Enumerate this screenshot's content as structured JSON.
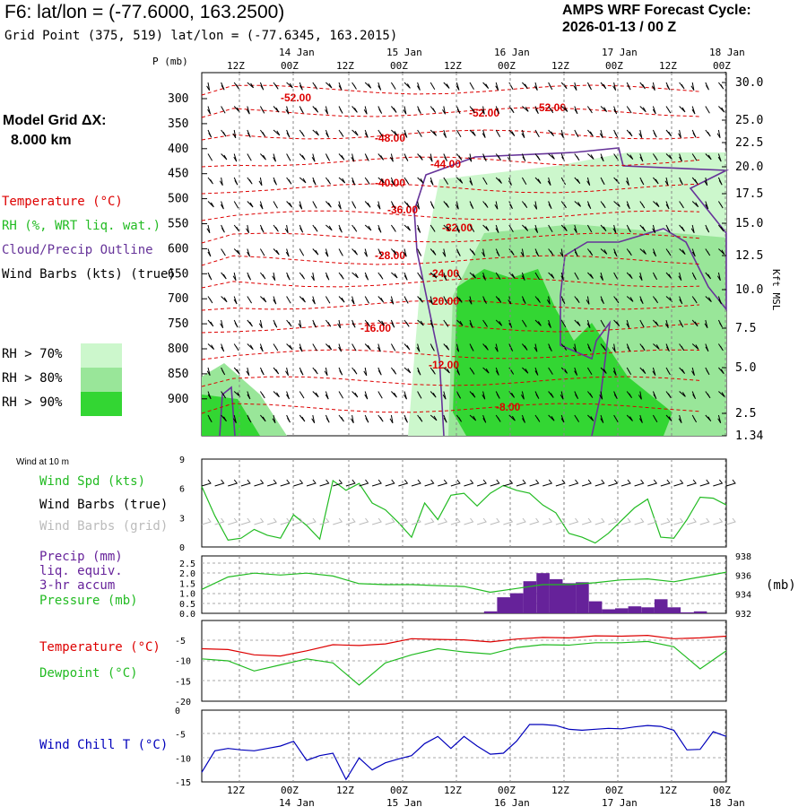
{
  "header": {
    "title": "F6:  lat/lon = (-77.6000, 163.2500)",
    "subtitle": "Grid Point (375, 519) lat/lon = (-77.6345, 163.2015)",
    "cycle_line1": "AMPS WRF Forecast Cycle:",
    "cycle_line2": "2026-01-13 / 00  Z"
  },
  "model_grid": {
    "label": "Model Grid ΔX:",
    "value": "8.000 km"
  },
  "legend": {
    "temperature": "Temperature (°C)",
    "rh": "RH (%, WRT liq. wat.)",
    "cloud": "Cloud/Precip Outline",
    "wind": "Wind Barbs (kts) (true)",
    "rh70": "RH > 70%",
    "rh80": "RH > 80%",
    "rh90": "RH > 90%"
  },
  "colors": {
    "temperature": "#dd0000",
    "rh70": "#ccf7cc",
    "rh80": "#99e699",
    "rh90": "#33d633",
    "cloud": "#663399",
    "precip": "#66229a",
    "pressure": "#22bb22",
    "dewpoint": "#22bb22",
    "windchill": "#0000bb",
    "windspd": "#22bb22"
  },
  "time_axis": {
    "top_hours": [
      "12Z",
      "00Z",
      "12Z",
      "00Z",
      "12Z",
      "00Z",
      "12Z",
      "00Z",
      "12Z",
      "00Z"
    ],
    "top_dates": [
      "14 Jan",
      "15 Jan",
      "16 Jan",
      "17 Jan",
      "18 Jan"
    ],
    "bottom_hours": [
      "12Z",
      "00Z",
      "12Z",
      "00Z",
      "12Z",
      "00Z",
      "12Z",
      "00Z",
      "12Z",
      "00Z"
    ],
    "bottom_dates": [
      "14 Jan",
      "15 Jan",
      "16 Jan",
      "17 Jan",
      "18 Jan"
    ]
  },
  "profile": {
    "p_axis_label": "P (mb)",
    "right_axis_label": "Kft MSL",
    "p_ticks": [
      "300",
      "350",
      "400",
      "450",
      "500",
      "550",
      "600",
      "650",
      "700",
      "750",
      "800",
      "850",
      "900"
    ],
    "kft_ticks": [
      "30.0",
      "25.0",
      "22.5",
      "20.0",
      "17.5",
      "15.0",
      "12.5",
      "10.0",
      "7.5",
      "5.0",
      "2.5",
      "1.34"
    ],
    "temp_labels": [
      "-52.00",
      "-52.00",
      "-52.00",
      "-48.00",
      "-44.00",
      "-40.00",
      "-36.00",
      "-32.00",
      "-28.00",
      "-24.00",
      "-20.00",
      "-16.00",
      "-12.00",
      "-8.00"
    ]
  },
  "wind10": {
    "title": "Wind at 10 m",
    "spd_label": "Wind Spd (kts)",
    "barbs_true": "Wind Barbs (true)",
    "barbs_grid": "Wind Barbs (grid)",
    "y_ticks": [
      "9",
      "6",
      "3",
      "0"
    ]
  },
  "precip_panel": {
    "precip_label1": "Precip (mm)",
    "precip_label2": "liq. equiv.",
    "precip_label3": "3-hr accum",
    "pressure_label": "Pressure (mb)",
    "left_ticks": [
      "2.5",
      "2.0",
      "1.5",
      "1.0",
      "0.5",
      "0.0"
    ],
    "right_ticks": [
      "938",
      "936",
      "934",
      "932"
    ],
    "right_unit": "(mb)"
  },
  "temp_panel": {
    "temp_label": "Temperature (°C)",
    "dew_label": "Dewpoint (°C)",
    "ticks": [
      "-5",
      "-10",
      "-15",
      "-20"
    ]
  },
  "chill_panel": {
    "label": "Wind Chill T (°C)",
    "ticks": [
      "0",
      "-5",
      "-10",
      "-15"
    ]
  },
  "chart_data": [
    {
      "type": "line",
      "title": "Wind Spd (kts)",
      "x_hours": [
        0,
        3,
        6,
        9,
        12,
        15,
        18,
        21,
        24,
        27,
        30,
        33,
        36,
        39,
        42,
        45,
        48,
        51,
        54,
        57,
        60,
        63,
        66,
        69,
        72,
        75,
        78,
        81,
        84,
        87,
        90,
        93,
        96,
        99,
        102,
        105,
        108,
        111,
        114,
        117,
        120
      ],
      "series": [
        {
          "name": "Wind Spd (kts)",
          "values": [
            6.2,
            3.2,
            0.7,
            0.9,
            1.8,
            1.2,
            0.9,
            3.3,
            2.2,
            0.8,
            6.8,
            5.8,
            6.5,
            4.5,
            3.8,
            2.5,
            1.0,
            4.5,
            2.8,
            5.3,
            5.5,
            4.2,
            5.5,
            6.3,
            5.8,
            5.5,
            4.3,
            3.5,
            1.4,
            1.0,
            0.4,
            1.4,
            2.7,
            4.0,
            4.9,
            1.0,
            0.9,
            2.8,
            5.1,
            5.0,
            4.3
          ]
        }
      ],
      "ylim": [
        0,
        9
      ]
    },
    {
      "type": "bar",
      "title": "Precip (mm) liq. equiv. 3-hr accum",
      "x_hours": [
        66,
        69,
        72,
        75,
        78,
        81,
        84,
        87,
        90,
        93,
        96,
        99,
        102,
        105,
        108,
        111,
        114
      ],
      "values": [
        0.1,
        0.8,
        1.0,
        1.6,
        2.0,
        1.7,
        1.5,
        1.55,
        0.6,
        0.2,
        0.25,
        0.35,
        0.3,
        0.7,
        0.3,
        0.05,
        0.1
      ],
      "ylim": [
        0,
        2.5
      ]
    },
    {
      "type": "line",
      "title": "Pressure (mb)",
      "x_hours": [
        0,
        6,
        12,
        18,
        24,
        30,
        36,
        42,
        48,
        54,
        60,
        66,
        72,
        78,
        84,
        90,
        96,
        102,
        108,
        114,
        120
      ],
      "series": [
        {
          "name": "Pressure (mb)",
          "values": [
            934.5,
            935.8,
            936.2,
            936.0,
            936.2,
            935.9,
            935.1,
            935.0,
            935.0,
            934.9,
            934.8,
            934.2,
            934.6,
            935.0,
            935.0,
            935.2,
            935.5,
            935.6,
            935.3,
            935.8,
            936.3
          ]
        }
      ],
      "ylim": [
        932,
        938
      ]
    },
    {
      "type": "line",
      "title": "Temperature (°C) / Dewpoint (°C)",
      "x_hours": [
        0,
        6,
        12,
        18,
        24,
        30,
        36,
        42,
        48,
        54,
        60,
        66,
        72,
        78,
        84,
        90,
        96,
        102,
        108,
        114,
        120
      ],
      "series": [
        {
          "name": "Temperature (°C)",
          "values": [
            -7,
            -7.2,
            -8.5,
            -8.8,
            -7.5,
            -6,
            -6.2,
            -5.8,
            -4.5,
            -4.7,
            -4.8,
            -5.3,
            -4.6,
            -4.2,
            -4.3,
            -3.8,
            -3.9,
            -3.7,
            -4.5,
            -4.3,
            -3.9
          ]
        },
        {
          "name": "Dewpoint (°C)",
          "values": [
            -9.5,
            -10,
            -12.5,
            -11,
            -9.5,
            -10.5,
            -16,
            -10.5,
            -8.5,
            -7,
            -7.8,
            -8.3,
            -6.7,
            -6,
            -6.1,
            -5.5,
            -5.5,
            -5.2,
            -6.5,
            -12,
            -7.5
          ]
        }
      ],
      "ylim": [
        -20,
        0
      ]
    },
    {
      "type": "line",
      "title": "Wind Chill T (°C)",
      "x_hours": [
        0,
        3,
        6,
        9,
        12,
        15,
        18,
        21,
        24,
        27,
        30,
        33,
        36,
        39,
        42,
        45,
        48,
        51,
        54,
        57,
        60,
        63,
        66,
        69,
        72,
        75,
        78,
        81,
        84,
        87,
        90,
        93,
        96,
        99,
        102,
        105,
        108,
        111,
        114,
        117,
        120
      ],
      "series": [
        {
          "name": "Wind Chill T (°C)",
          "values": [
            -13,
            -8.5,
            -8,
            -8.3,
            -8.5,
            -8,
            -7.5,
            -6.5,
            -10.5,
            -9.5,
            -9,
            -14.5,
            -10,
            -12.5,
            -11,
            -10.2,
            -9.5,
            -7,
            -5.5,
            -8,
            -5.5,
            -7.5,
            -9.2,
            -9.0,
            -6.5,
            -3,
            -3,
            -3.2,
            -4,
            -4.2,
            -4,
            -3.8,
            -3.9,
            -3.5,
            -3.2,
            -3.4,
            -4.2,
            -8.3,
            -8.2,
            -4.5,
            -5.5
          ]
        }
      ],
      "ylim": [
        -15,
        0
      ]
    }
  ]
}
